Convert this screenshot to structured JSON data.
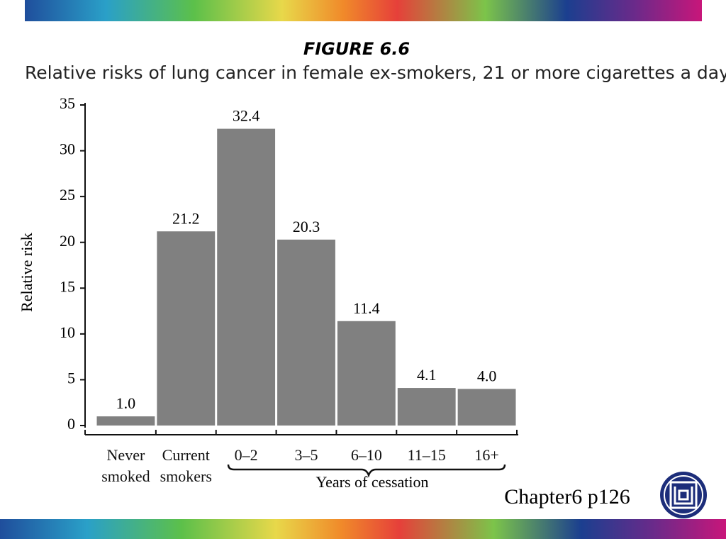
{
  "chart_data": {
    "type": "bar",
    "title": "FIGURE 6.6",
    "subtitle": "Relative risks of lung cancer in female ex-smokers, 21 or more cigarettes a day",
    "y_label": "Relative risk",
    "annotation": "Years of cessation",
    "categories": [
      "Never smoked",
      "Current smokers",
      "0–2",
      "3–5",
      "6–10",
      "11–15",
      "16+"
    ],
    "values": [
      1.0,
      21.2,
      32.4,
      20.3,
      11.4,
      4.1,
      4.0
    ],
    "value_labels": [
      "1.0",
      "21.2",
      "32.4",
      "20.3",
      "11.4",
      "4.1",
      "4.0"
    ],
    "color": "#808080",
    "ylim": [
      0,
      35
    ],
    "yticks": [
      0,
      5,
      10,
      15,
      20,
      25,
      30,
      35
    ],
    "grid": false
  },
  "footer": "Chapter6 p126"
}
